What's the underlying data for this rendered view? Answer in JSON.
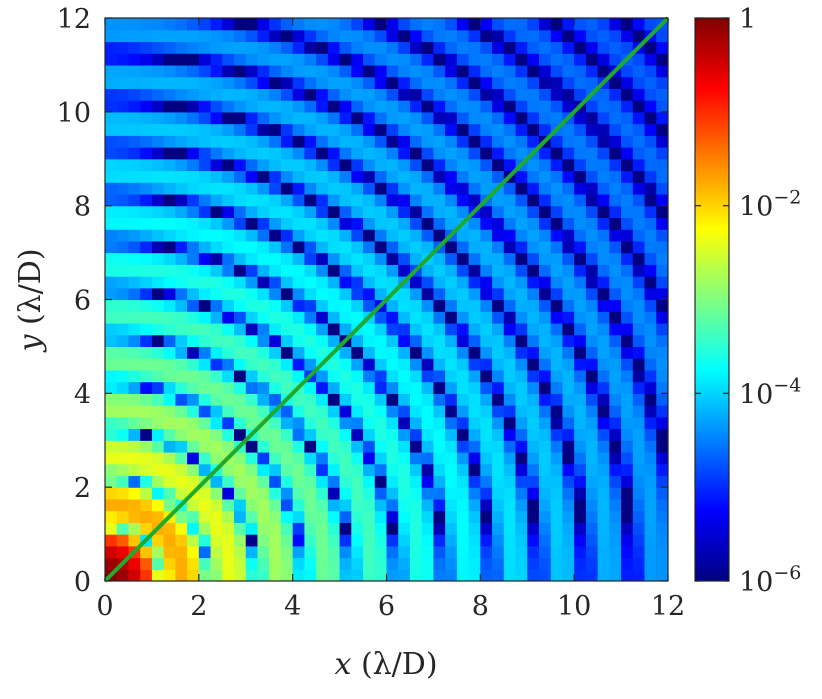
{
  "chart_data": {
    "type": "heatmap",
    "title": "",
    "xlabel": {
      "var": "x",
      "unit": "(λ/D)"
    },
    "ylabel": {
      "var": "y",
      "unit": "(λ/D)"
    },
    "xlim": [
      0,
      12
    ],
    "ylim": [
      0,
      12
    ],
    "xticks": [
      0,
      2,
      4,
      6,
      8,
      10,
      12
    ],
    "yticks": [
      0,
      2,
      4,
      6,
      8,
      10,
      12
    ],
    "grid": false,
    "colormap": "jet",
    "color_scale": "log",
    "color_range": [
      1e-06,
      1
    ],
    "colorbar_ticks": [
      {
        "value": 1e-06,
        "base": "10",
        "exp": "−6"
      },
      {
        "value": 0.0001,
        "base": "10",
        "exp": "−4"
      },
      {
        "value": 0.01,
        "base": "10",
        "exp": "−2"
      },
      {
        "value": 1,
        "base": "1",
        "exp": ""
      }
    ],
    "pixel_grid": {
      "nx": 48,
      "ny": 48
    },
    "field": "Airy diffraction intensity I(r) = [2·J1(π r)/(π r)]^2, r in λ/D, peak 1 at origin",
    "overlay_line": {
      "color": "#1faa2e",
      "x": [
        0,
        12
      ],
      "y": [
        0,
        12
      ]
    }
  }
}
